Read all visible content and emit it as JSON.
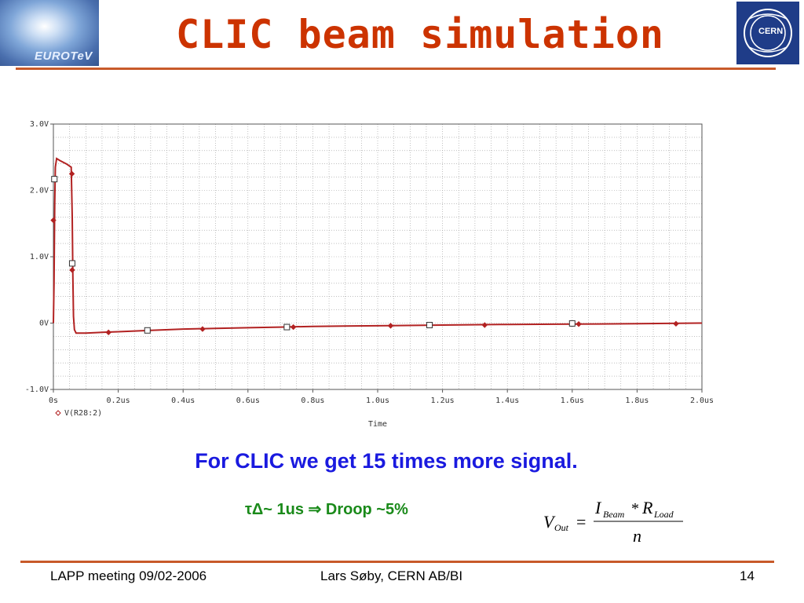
{
  "slide": {
    "title": "CLIC beam simulation",
    "logo_left_text": "EUROTeV",
    "logo_right_text": "CERN",
    "message": "For CLIC we get 15 times more signal.",
    "droop_text": "τΔ~ 1us ⇒ Droop ~5%",
    "formula": {
      "lhs": "V",
      "lhs_sub": "Out",
      "eq": "=",
      "num_a": "I",
      "num_a_sub": "Beam",
      "num_op": "*",
      "num_b": "R",
      "num_b_sub": "Load",
      "den": "n"
    },
    "footer": {
      "left": "LAPP meeting 09/02-2006",
      "center": "Lars Søby, CERN AB/BI",
      "page": "14"
    }
  },
  "chart_data": {
    "type": "line",
    "xlabel": "Time",
    "ylabel": "",
    "xlim": [
      0,
      2.0
    ],
    "ylim": [
      -1.0,
      3.0
    ],
    "x_ticks": [
      0,
      0.2,
      0.4,
      0.6,
      0.8,
      1.0,
      1.2,
      1.4,
      1.6,
      1.8,
      2.0
    ],
    "x_tick_labels": [
      "0s",
      "0.2us",
      "0.4us",
      "0.6us",
      "0.8us",
      "1.0us",
      "1.2us",
      "1.4us",
      "1.6us",
      "1.8us",
      "2.0us"
    ],
    "y_ticks": [
      -1.0,
      0,
      1.0,
      2.0,
      3.0
    ],
    "y_tick_labels": [
      "-1.0V",
      "0V",
      "1.0V",
      "2.0V",
      "3.0V"
    ],
    "grid": true,
    "legend": "bottom-left",
    "series": [
      {
        "name": "V(R28:2)",
        "color": "#b22222",
        "x": [
          0,
          0.002,
          0.004,
          0.006,
          0.01,
          0.02,
          0.04,
          0.055,
          0.058,
          0.06,
          0.062,
          0.065,
          0.07,
          0.1,
          0.15,
          0.2,
          0.3,
          0.4,
          0.5,
          0.6,
          0.7,
          0.8,
          0.9,
          1.0,
          1.2,
          1.4,
          1.6,
          1.8,
          2.0
        ],
        "values": [
          0,
          0.6,
          1.8,
          2.35,
          2.48,
          2.45,
          2.4,
          2.35,
          1.6,
          0.7,
          0.1,
          -0.1,
          -0.15,
          -0.15,
          -0.14,
          -0.13,
          -0.11,
          -0.09,
          -0.08,
          -0.07,
          -0.06,
          -0.05,
          -0.045,
          -0.04,
          -0.03,
          -0.02,
          -0.015,
          -0.01,
          0.0
        ]
      }
    ],
    "markers": {
      "diamonds": [
        [
          0.0,
          1.55
        ],
        [
          0.057,
          2.25
        ],
        [
          0.058,
          0.8
        ],
        [
          0.17,
          -0.14
        ],
        [
          0.46,
          -0.09
        ],
        [
          0.74,
          -0.06
        ],
        [
          1.04,
          -0.04
        ],
        [
          1.33,
          -0.03
        ],
        [
          1.62,
          -0.015
        ],
        [
          1.92,
          -0.01
        ]
      ],
      "squares": [
        [
          0.003,
          2.17
        ],
        [
          0.058,
          0.9
        ],
        [
          0.29,
          -0.11
        ],
        [
          0.72,
          -0.06
        ],
        [
          1.16,
          -0.03
        ],
        [
          1.6,
          -0.005
        ]
      ]
    }
  }
}
